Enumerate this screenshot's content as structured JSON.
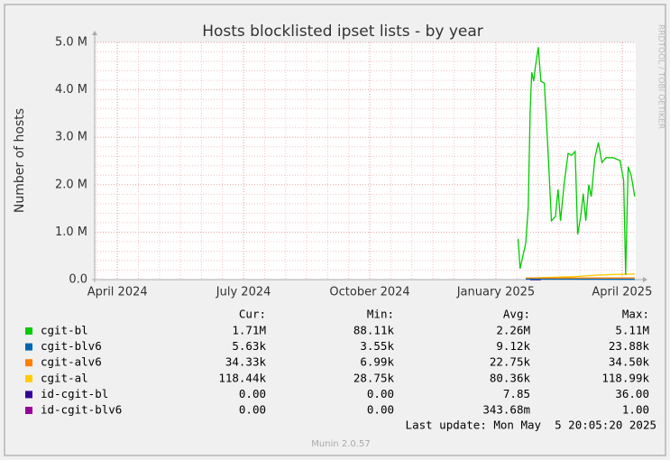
{
  "chart_data": {
    "type": "line",
    "title": "Hosts blocklisted ipset lists - by year",
    "ylabel": "Number of hosts",
    "side_text": "RRDTOOL / TOBI OETIKER",
    "footer": "Munin 2.0.57",
    "last_update": "Last update: Mon May  5 20:05:20 2025",
    "xlim": [
      2024.205,
      2025.277
    ],
    "xticks": [
      {
        "value": 2024.25,
        "label": "April 2024"
      },
      {
        "value": 2024.5,
        "label": "July 2024"
      },
      {
        "value": 2024.75,
        "label": "October 2024"
      },
      {
        "value": 2025.0,
        "label": "January 2025"
      },
      {
        "value": 2025.25,
        "label": "April 2025"
      }
    ],
    "ylim": [
      0,
      5000000
    ],
    "yticks": [
      {
        "value": 0,
        "label": "0.0"
      },
      {
        "value": 1000000,
        "label": "1.0 M"
      },
      {
        "value": 2000000,
        "label": "2.0 M"
      },
      {
        "value": 3000000,
        "label": "3.0 M"
      },
      {
        "value": 4000000,
        "label": "4.0 M"
      },
      {
        "value": 5000000,
        "label": "5.0 M"
      }
    ],
    "grid": true,
    "stat_columns": [
      "Cur:",
      "Min:",
      "Avg:",
      "Max:"
    ],
    "series": [
      {
        "name": "cgit-bl",
        "color": "#00cc00",
        "x": [
          2025.044,
          2025.048,
          2025.053,
          2025.059,
          2025.064,
          2025.068,
          2025.071,
          2025.075,
          2025.078,
          2025.084,
          2025.089,
          2025.096,
          2025.103,
          2025.11,
          2025.118,
          2025.123,
          2025.128,
          2025.135,
          2025.143,
          2025.15,
          2025.157,
          2025.162,
          2025.168,
          2025.173,
          2025.178,
          2025.184,
          2025.189,
          2025.196,
          2025.203,
          2025.21,
          2025.218,
          2025.232,
          2025.246,
          2025.253,
          2025.257,
          2025.262,
          2025.268,
          2025.275
        ],
        "values": [
          860000,
          230000,
          480000,
          760000,
          1520000,
          3610000,
          4370000,
          4180000,
          4470000,
          4900000,
          4180000,
          4140000,
          2760000,
          1240000,
          1330000,
          1900000,
          1240000,
          2000000,
          2660000,
          2620000,
          2700000,
          950000,
          1330000,
          1810000,
          1240000,
          2000000,
          1750000,
          2570000,
          2890000,
          2470000,
          2570000,
          2570000,
          2510000,
          2090000,
          100000,
          2380000,
          2190000,
          1750000
        ],
        "stats": [
          "1.71M",
          "88.11k",
          "2.26M",
          "5.11M"
        ]
      },
      {
        "name": "cgit-blv6",
        "color": "#0066b3",
        "x": [
          2025.059,
          2025.15,
          2025.275
        ],
        "values": [
          9000,
          9000,
          6000
        ],
        "stats": [
          "5.63k",
          "3.55k",
          "9.12k",
          "23.88k"
        ]
      },
      {
        "name": "cgit-alv6",
        "color": "#ff8000",
        "x": [
          2025.059,
          2025.15,
          2025.275
        ],
        "values": [
          30000,
          34000,
          34000
        ],
        "stats": [
          "34.33k",
          "6.99k",
          "22.75k",
          "34.50k"
        ]
      },
      {
        "name": "cgit-al",
        "color": "#ffcc00",
        "x": [
          2025.059,
          2025.15,
          2025.21,
          2025.275
        ],
        "values": [
          30000,
          60000,
          100000,
          118000
        ],
        "stats": [
          "118.44k",
          "28.75k",
          "80.36k",
          "118.99k"
        ]
      },
      {
        "name": "id-cgit-bl",
        "color": "#330099",
        "x": [
          2025.068,
          2025.089
        ],
        "values": [
          0,
          0
        ],
        "stats": [
          "0.00",
          "0.00",
          "7.85",
          "36.00"
        ]
      },
      {
        "name": "id-cgit-blv6",
        "color": "#990099",
        "x": [
          2025.068,
          2025.089
        ],
        "values": [
          0,
          0
        ],
        "stats": [
          "0.00",
          "0.00",
          "343.68m",
          "1.00"
        ]
      }
    ]
  }
}
